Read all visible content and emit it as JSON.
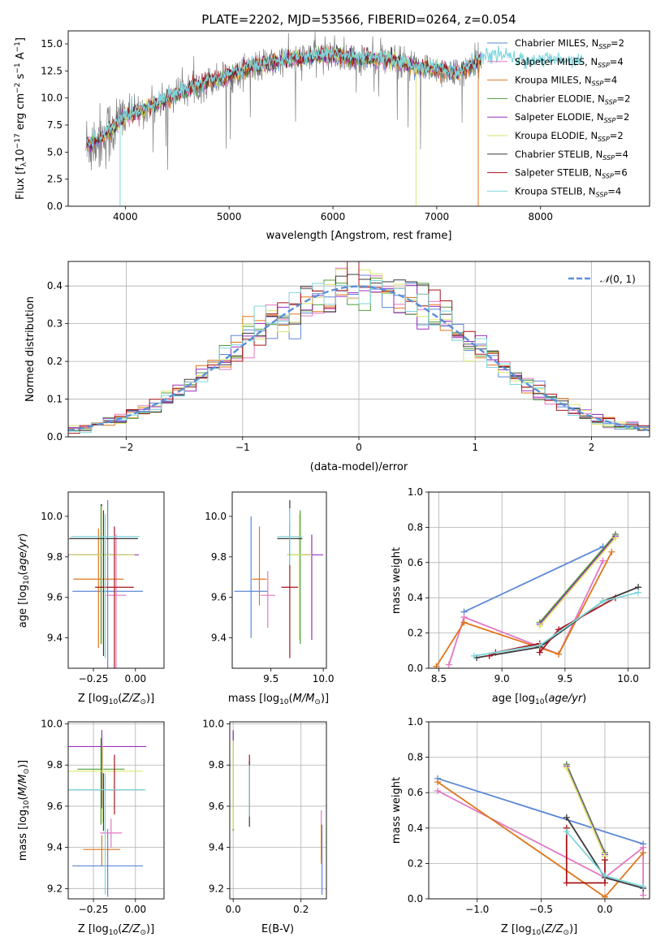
{
  "colors": {
    "cm": "#5b87d8",
    "sm": "#e377c2",
    "km": "#e0761c",
    "ce": "#4f9e3a",
    "se": "#9b2fc0",
    "ke": "#d9e66a",
    "cs": "#3a3a3a",
    "ss": "#a8151b",
    "ks": "#7fd6dc",
    "normal": "#5b8fd9",
    "grid": "#b0b0b0"
  },
  "title": "PLATE=2202, MJD=53566, FIBERID=0264, z=0.054",
  "spectrum": {
    "xlabel": "wavelength [Angstrom, rest frame]",
    "ylabel": "Flux [f",
    "xlim": [
      3450,
      9050
    ],
    "ylim": [
      0,
      16.2
    ],
    "xticks": [
      "4000",
      "5000",
      "6000",
      "7000",
      "8000"
    ],
    "yticks": [
      "0.0",
      "2.5",
      "5.0",
      "7.5",
      "10.0",
      "12.5",
      "15.0"
    ],
    "legend": [
      {
        "key": "cm",
        "prefix": "Chabrier MILES, N",
        "sub": "SSP",
        "suffix": "=2"
      },
      {
        "key": "sm",
        "prefix": "Salpeter MILES, N",
        "sub": "SSP",
        "suffix": "=4"
      },
      {
        "key": "km",
        "prefix": "Kroupa MILES, N",
        "sub": "SSP",
        "suffix": "=4"
      },
      {
        "key": "ce",
        "prefix": "Chabrier ELODIE, N",
        "sub": "SSP",
        "suffix": "=2"
      },
      {
        "key": "se",
        "prefix": "Salpeter ELODIE, N",
        "sub": "SSP",
        "suffix": "=2"
      },
      {
        "key": "ke",
        "prefix": "Kroupa ELODIE, N",
        "sub": "SSP",
        "suffix": "=2"
      },
      {
        "key": "cs",
        "prefix": "Chabrier STELIB, N",
        "sub": "SSP",
        "suffix": "=4"
      },
      {
        "key": "ss",
        "prefix": "Salpeter STELIB, N",
        "sub": "SSP",
        "suffix": "=6"
      },
      {
        "key": "ks",
        "prefix": "Kroupa STELIB, N",
        "sub": "SSP",
        "suffix": "=4"
      }
    ]
  },
  "histogram": {
    "xlabel": "(data-model)/error",
    "ylabel": "Normed distribution",
    "xlim": [
      -2.5,
      2.5
    ],
    "ylim": [
      0,
      0.465
    ],
    "xticks": [
      "-2",
      "-1",
      "0",
      "1",
      "2"
    ],
    "yticks": [
      "0.0",
      "0.1",
      "0.2",
      "0.3",
      "0.4"
    ],
    "legend_label": "(0, 1)",
    "legend_symbol": "𝒩"
  },
  "panels": {
    "age_vs_z": {
      "xlabel": "Z [log",
      "xlim": [
        -0.4,
        0.17
      ],
      "ylim": [
        9.25,
        10.12
      ],
      "xticks": [
        "-0.25",
        "0.00"
      ],
      "yticks": [
        "9.4",
        "9.6",
        "9.8",
        "10.0"
      ],
      "ylabel": "age  [log"
    },
    "age_vs_mass": {
      "xlabel": "mass [log",
      "xlim": [
        9.13,
        10.03
      ],
      "ylim": [
        9.25,
        10.12
      ],
      "xticks": [
        "9.5",
        "10.0"
      ],
      "yticks": [
        "9.4",
        "9.6",
        "9.8",
        "10.0"
      ]
    },
    "weight_vs_age": {
      "xlabel": "age  [log",
      "ylabel": "mass weight",
      "xlim": [
        8.42,
        10.17
      ],
      "ylim": [
        0,
        1
      ],
      "xticks": [
        "8.5",
        "9.0",
        "9.5",
        "10.0"
      ],
      "yticks": [
        "0.0",
        "0.2",
        "0.4",
        "0.6",
        "0.8",
        "1.0"
      ]
    },
    "mass_vs_z": {
      "xlabel": "Z [log",
      "ylabel": "mass [log",
      "xlim": [
        -0.4,
        0.17
      ],
      "ylim": [
        9.15,
        10.01
      ],
      "xticks": [
        "-0.25",
        "0.00"
      ],
      "yticks": [
        "9.2",
        "9.4",
        "9.6",
        "9.8",
        "10.0"
      ]
    },
    "mass_vs_ebv": {
      "xlabel": "E(B-V)",
      "xlim": [
        -0.01,
        0.275
      ],
      "ylim": [
        9.15,
        10.01
      ],
      "xticks": [
        "0.0",
        "0.2"
      ],
      "yticks": [
        "9.2",
        "9.4",
        "9.6",
        "9.8",
        "10.0"
      ]
    },
    "weight_vs_z": {
      "xlabel": "Z [log",
      "ylabel": "mass weight",
      "xlim": [
        -1.38,
        0.35
      ],
      "ylim": [
        0,
        1
      ],
      "xticks": [
        "-1.0",
        "-0.5",
        "0.0"
      ],
      "yticks": [
        "0.0",
        "0.2",
        "0.4",
        "0.6",
        "0.8",
        "1.0"
      ]
    }
  },
  "chart_data": [
    {
      "type": "line",
      "panel": "spectrum",
      "title": "PLATE=2202, MJD=53566, FIBERID=0264, z=0.054",
      "xlabel": "wavelength [Angstrom, rest frame]",
      "ylabel": "Flux [f_λ 10^-17 erg cm^-2 s^-1 A^-1]",
      "x_range": [
        3450,
        9050
      ],
      "y_range": [
        0,
        16.2
      ],
      "observed_shape": {
        "x": [
          3600,
          3800,
          4000,
          4200,
          4400,
          4600,
          4800,
          5000,
          5200,
          5400,
          5600,
          5800,
          6000,
          6200,
          6400,
          6600,
          6800,
          7000,
          7200,
          7400,
          7600,
          7800,
          8000,
          8200,
          8400,
          8600,
          8800,
          9000
        ],
        "y": [
          5.5,
          6.5,
          8.3,
          9.0,
          10.0,
          10.8,
          11.5,
          12.0,
          12.8,
          13.2,
          13.6,
          13.8,
          14.0,
          13.6,
          13.6,
          13.4,
          12.8,
          12.7,
          12.2,
          13.5,
          13.9,
          13.3,
          13.4,
          13.4,
          13.4,
          13.4,
          13.4,
          13.4
        ]
      },
      "series": [
        {
          "name": "Chabrier MILES, N_SSP=2"
        },
        {
          "name": "Salpeter MILES, N_SSP=4"
        },
        {
          "name": "Kroupa MILES, N_SSP=4"
        },
        {
          "name": "Chabrier ELODIE, N_SSP=2"
        },
        {
          "name": "Salpeter ELODIE, N_SSP=2"
        },
        {
          "name": "Kroupa ELODIE, N_SSP=2"
        },
        {
          "name": "Chabrier STELIB, N_SSP=4"
        },
        {
          "name": "Salpeter STELIB, N_SSP=6"
        },
        {
          "name": "Kroupa STELIB, N_SSP=4"
        }
      ]
    },
    {
      "type": "line",
      "panel": "histogram",
      "xlabel": "(data-model)/error",
      "ylabel": "Normed distribution",
      "x_range": [
        -2.5,
        2.5
      ],
      "y_range": [
        0,
        0.465
      ],
      "bin_width": 0.1,
      "envelope": {
        "x": [
          -2.5,
          -2.0,
          -1.5,
          -1.0,
          -0.5,
          0.0,
          0.5,
          1.0,
          1.5,
          2.0,
          2.5
        ],
        "y": [
          0.03,
          0.06,
          0.14,
          0.25,
          0.34,
          0.39,
          0.35,
          0.24,
          0.13,
          0.06,
          0.025
        ]
      },
      "reference": {
        "name": "𝒩(0, 1)",
        "function": "normal pdf",
        "mean": 0,
        "sigma": 1
      }
    },
    {
      "type": "scatter",
      "panel": "age_vs_z",
      "ylabel": "age  [log10(age/yr)]",
      "xlabel": "Z [log10(Z/Z⊙)]",
      "points": [
        {
          "key": "cm",
          "x": -0.165,
          "y": 9.63,
          "xerr": 0.21,
          "yerr": [
            0.82,
            0.45
          ]
        },
        {
          "key": "sm",
          "x": -0.115,
          "y": 9.61,
          "xerr": 0.06,
          "yerr": [
            0.4,
            0.3
          ]
        },
        {
          "key": "km",
          "x": -0.22,
          "y": 9.69,
          "xerr": 0.15,
          "yerr": [
            0.34,
            0.25
          ]
        },
        {
          "key": "ce",
          "x": -0.205,
          "y": 9.81,
          "xerr": 0.165,
          "yerr": [
            0.44,
            0.25
          ]
        },
        {
          "key": "se",
          "x": -0.2,
          "y": 9.81,
          "xerr": 0.22,
          "yerr": [
            0.4,
            0.25
          ]
        },
        {
          "key": "ke",
          "x": -0.2,
          "y": 9.81,
          "xerr": 0.195,
          "yerr": [
            0.44,
            0.24
          ]
        },
        {
          "key": "cs",
          "x": -0.19,
          "y": 9.89,
          "xerr": 0.205,
          "yerr": [
            0.58,
            0.14
          ]
        },
        {
          "key": "ss",
          "x": -0.125,
          "y": 9.65,
          "xerr": 0.115,
          "yerr": [
            0.4,
            0.3
          ]
        },
        {
          "key": "ks",
          "x": -0.18,
          "y": 9.9,
          "xerr": 0.205,
          "yerr": [
            0.6,
            0.11
          ]
        }
      ]
    },
    {
      "type": "scatter",
      "panel": "age_vs_mass",
      "xlabel": "mass [log10(M/M⊙)]",
      "points": [
        {
          "key": "cm",
          "x": 9.31,
          "y": 9.63,
          "xerr": 0.16,
          "yerr": [
            0.23,
            0.37
          ]
        },
        {
          "key": "sm",
          "x": 9.47,
          "y": 9.61,
          "xerr": 0.07,
          "yerr": [
            0.16,
            0.12
          ]
        },
        {
          "key": "km",
          "x": 9.39,
          "y": 9.69,
          "xerr": 0.07,
          "yerr": [
            0.13,
            0.26
          ]
        },
        {
          "key": "ce",
          "x": 9.78,
          "y": 9.81,
          "xerr": 0.12,
          "yerr": [
            0.44,
            0.22
          ]
        },
        {
          "key": "se",
          "x": 9.89,
          "y": 9.81,
          "xerr": 0.11,
          "yerr": [
            0.42,
            0.1
          ]
        },
        {
          "key": "ke",
          "x": 9.77,
          "y": 9.81,
          "xerr": 0.12,
          "yerr": [
            0.42,
            0.2
          ]
        },
        {
          "key": "cs",
          "x": 9.68,
          "y": 9.89,
          "xerr": 0.12,
          "yerr": [
            0.08,
            0.19
          ]
        },
        {
          "key": "ss",
          "x": 9.68,
          "y": 9.65,
          "xerr": 0.08,
          "yerr": [
            0.35,
            0.31
          ]
        },
        {
          "key": "ks",
          "x": 9.68,
          "y": 9.9,
          "xerr": 0.12,
          "yerr": [
            0.14,
            0.14
          ]
        }
      ]
    },
    {
      "type": "line",
      "panel": "weight_vs_age",
      "xlabel": "age  [log10(age/yr)]",
      "ylabel": "mass weight",
      "series": [
        {
          "key": "cm",
          "x": [
            8.7,
            9.8
          ],
          "y": [
            0.32,
            0.69
          ]
        },
        {
          "key": "sm",
          "x": [
            8.58,
            8.7,
            9.45,
            9.8
          ],
          "y": [
            0.02,
            0.29,
            0.08,
            0.61
          ]
        },
        {
          "key": "km",
          "x": [
            8.48,
            8.7,
            9.45,
            9.87
          ],
          "y": [
            0.01,
            0.26,
            0.08,
            0.66
          ]
        },
        {
          "key": "ce",
          "x": [
            9.3,
            9.9
          ],
          "y": [
            0.26,
            0.76
          ]
        },
        {
          "key": "se",
          "x": [
            9.3,
            9.9
          ],
          "y": [
            0.25,
            0.75
          ]
        },
        {
          "key": "ke",
          "x": [
            9.3,
            9.9
          ],
          "y": [
            0.24,
            0.74
          ]
        },
        {
          "key": "cs",
          "x": [
            8.8,
            9.3,
            9.8,
            10.08
          ],
          "y": [
            0.06,
            0.12,
            0.38,
            0.46
          ]
        },
        {
          "key": "ss",
          "x": [
            8.9,
            8.95,
            9.3,
            9.3,
            9.45,
            9.9
          ],
          "y": [
            0.07,
            0.09,
            0.14,
            0.09,
            0.22,
            0.4
          ]
        },
        {
          "key": "ks",
          "x": [
            8.78,
            9.3,
            9.8,
            10.08
          ],
          "y": [
            0.07,
            0.13,
            0.38,
            0.43
          ]
        }
      ]
    },
    {
      "type": "scatter",
      "panel": "mass_vs_z",
      "ylabel": "mass [log10(M/M⊙)]",
      "xlabel": "Z [log10(Z/Z⊙)]",
      "points": [
        {
          "key": "cm",
          "x": -0.165,
          "y": 9.31,
          "xerr": 0.21,
          "yerr": [
            0.15,
            0.18
          ]
        },
        {
          "key": "sm",
          "x": -0.145,
          "y": 9.47,
          "xerr": 0.065,
          "yerr": [
            0.07,
            0.07
          ]
        },
        {
          "key": "km",
          "x": -0.2,
          "y": 9.39,
          "xerr": 0.11,
          "yerr": [
            0.08,
            0.07
          ]
        },
        {
          "key": "ce",
          "x": -0.205,
          "y": 9.78,
          "xerr": 0.14,
          "yerr": [
            0.27,
            0.15
          ]
        },
        {
          "key": "se",
          "x": -0.2,
          "y": 9.89,
          "xerr": 0.265,
          "yerr": [
            0.3,
            0.08
          ]
        },
        {
          "key": "ke",
          "x": -0.195,
          "y": 9.77,
          "xerr": 0.24,
          "yerr": [
            0.25,
            0.12
          ]
        },
        {
          "key": "cs",
          "x": -0.19,
          "y": 9.68,
          "xerr": 0.24,
          "yerr": [
            0.2,
            0.08
          ]
        },
        {
          "key": "ss",
          "x": -0.125,
          "y": 9.68,
          "xerr": 0.02,
          "yerr": [
            0.12,
            0.17
          ]
        },
        {
          "key": "ks",
          "x": -0.18,
          "y": 9.68,
          "xerr": 0.24,
          "yerr": [
            0.51,
            0.08
          ]
        }
      ]
    },
    {
      "type": "scatter",
      "panel": "mass_vs_ebv",
      "xlabel": "E(B-V)",
      "points": [
        {
          "key": "cm",
          "x": 0.262,
          "y": 9.31,
          "xerr": 0.0,
          "yerr": [
            0.14,
            0.2
          ]
        },
        {
          "key": "sm",
          "x": 0.26,
          "y": 9.47,
          "xerr": 0.0,
          "yerr": [
            0.12,
            0.11
          ]
        },
        {
          "key": "km",
          "x": 0.26,
          "y": 9.39,
          "xerr": 0.0,
          "yerr": [
            0.07,
            0.12
          ]
        },
        {
          "key": "ce",
          "x": 0.0,
          "y": 9.78,
          "xerr": 0.0,
          "yerr": [
            0.3,
            0.18
          ]
        },
        {
          "key": "se",
          "x": 0.0,
          "y": 9.89,
          "xerr": 0.0,
          "yerr": [
            0.3,
            0.08
          ]
        },
        {
          "key": "ke",
          "x": 0.0,
          "y": 9.77,
          "xerr": 0.0,
          "yerr": [
            0.28,
            0.15
          ]
        },
        {
          "key": "cs",
          "x": 0.048,
          "y": 9.68,
          "xerr": 0.0,
          "yerr": [
            0.18,
            0.14
          ]
        },
        {
          "key": "ss",
          "x": 0.048,
          "y": 9.68,
          "xerr": 0.0,
          "yerr": [
            0.12,
            0.17
          ]
        },
        {
          "key": "ks",
          "x": 0.048,
          "y": 9.68,
          "xerr": 0.0,
          "yerr": [
            0.13,
            0.12
          ]
        }
      ]
    },
    {
      "type": "line",
      "panel": "weight_vs_z",
      "xlabel": "Z [log10(Z/Z⊙)]",
      "ylabel": "mass weight",
      "series": [
        {
          "key": "cm",
          "x": [
            -1.31,
            0.3
          ],
          "y": [
            0.68,
            0.31
          ]
        },
        {
          "key": "sm",
          "x": [
            -1.31,
            0.0,
            0.3,
            0.3
          ],
          "y": [
            0.61,
            0.12,
            0.29,
            0.02
          ]
        },
        {
          "key": "km",
          "x": [
            -1.31,
            0.0,
            0.3
          ],
          "y": [
            0.66,
            0.01,
            0.26
          ]
        },
        {
          "key": "ce",
          "x": [
            -0.3,
            0.0
          ],
          "y": [
            0.76,
            0.26
          ]
        },
        {
          "key": "se",
          "x": [
            -0.3,
            0.0
          ],
          "y": [
            0.75,
            0.25
          ]
        },
        {
          "key": "ke",
          "x": [
            -0.3,
            0.0
          ],
          "y": [
            0.74,
            0.24
          ]
        },
        {
          "key": "cs",
          "x": [
            -0.3,
            0.0,
            0.3
          ],
          "y": [
            0.46,
            0.12,
            0.06
          ]
        },
        {
          "key": "ss",
          "x": [
            -0.3,
            -0.3,
            0.0,
            0.0
          ],
          "y": [
            0.4,
            0.09,
            0.09,
            0.22
          ]
        },
        {
          "key": "ks",
          "x": [
            -0.3,
            0.0,
            0.3
          ],
          "y": [
            0.38,
            0.13,
            0.07
          ]
        }
      ]
    }
  ]
}
